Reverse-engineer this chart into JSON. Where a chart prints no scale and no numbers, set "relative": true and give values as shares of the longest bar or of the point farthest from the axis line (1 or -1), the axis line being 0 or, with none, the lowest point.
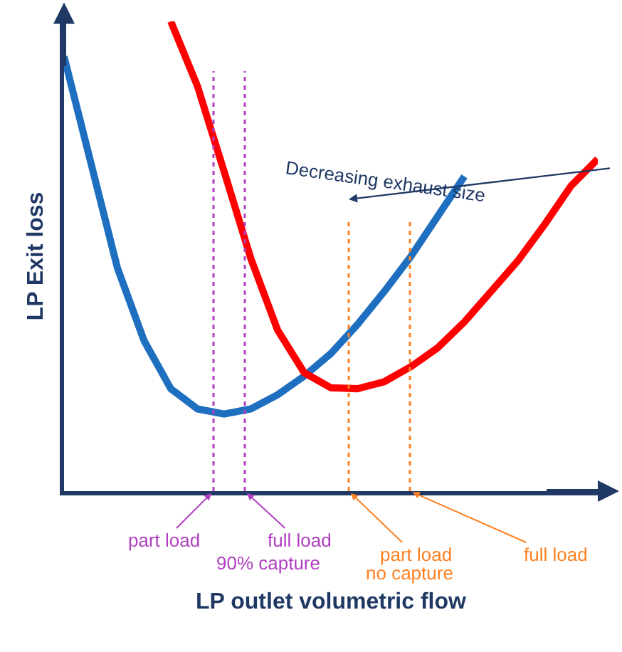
{
  "chart_data": {
    "type": "line",
    "relative": true,
    "xlabel": "LP outlet volumetric flow",
    "ylabel": "LP Exit loss",
    "marker": "none",
    "line_style": "solid",
    "tick_labels": false,
    "categories": [
      null,
      null,
      null,
      null,
      null,
      null,
      null,
      null,
      null,
      null,
      null,
      null,
      null,
      null,
      null,
      null,
      null,
      null,
      null,
      null,
      null
    ],
    "series": [
      {
        "color": "#1f6fc0",
        "values": [
          0.925,
          0.7,
          0.475,
          0.32,
          0.218,
          0.175,
          0.164,
          0.175,
          0.205,
          0.245,
          0.293,
          0.355,
          0.425,
          0.5,
          0.585,
          0.67,
          null,
          null,
          null,
          null,
          null
        ]
      },
      {
        "color": "#ff0000",
        "values": [
          null,
          null,
          null,
          null,
          1,
          0.862,
          0.68,
          0.495,
          0.343,
          0.252,
          0.22,
          0.218,
          0.233,
          0.265,
          0.305,
          0.36,
          0.425,
          0.49,
          0.567,
          0.65,
          0.707
        ]
      }
    ],
    "annotations": [
      "part load",
      "full load",
      "90% capture",
      "part load",
      "full load",
      "no capture",
      "Decreasing exhaust size"
    ]
  }
}
